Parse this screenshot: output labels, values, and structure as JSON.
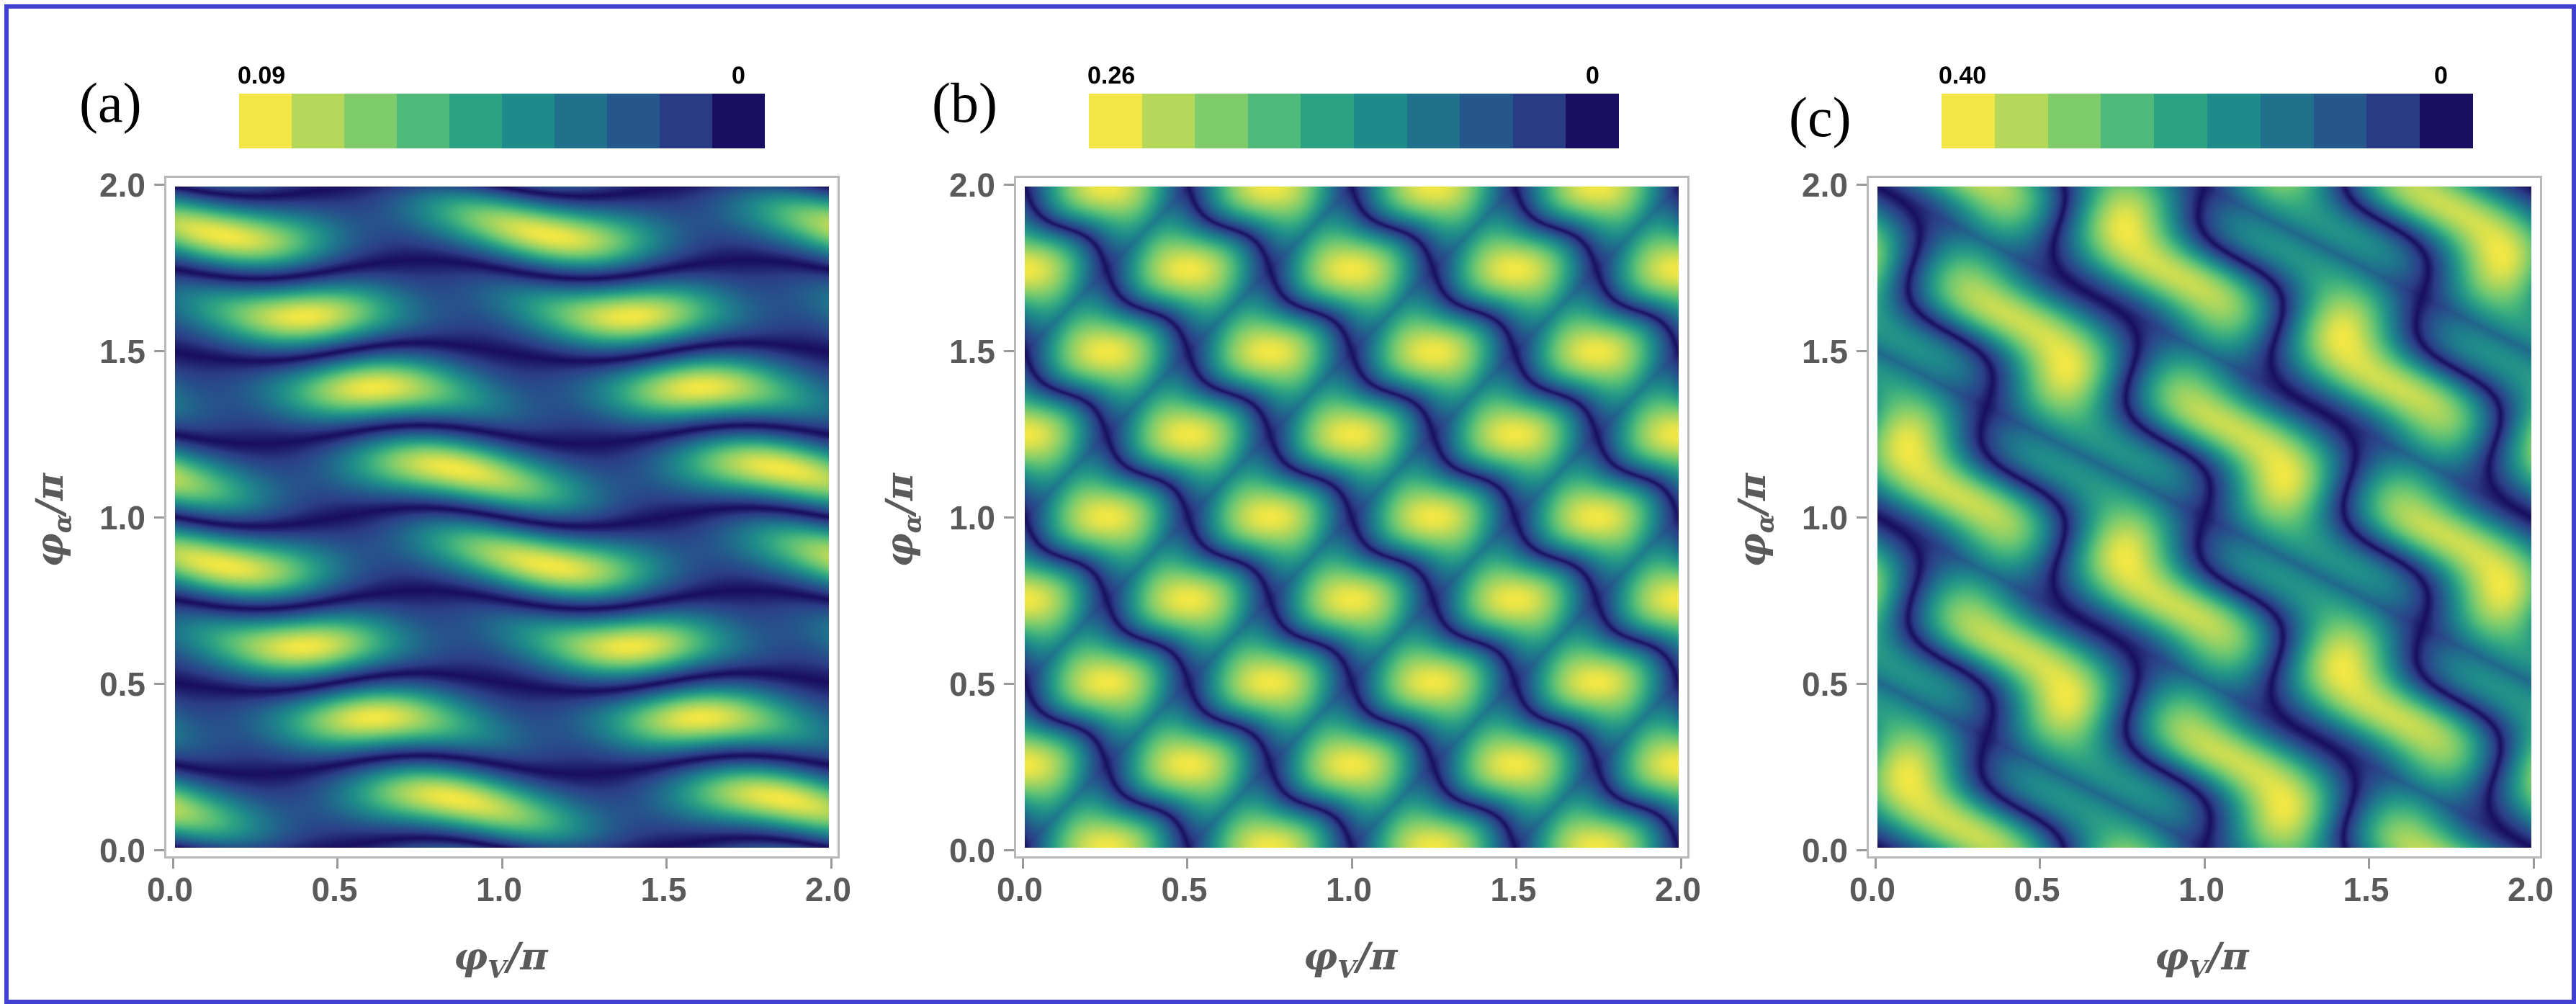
{
  "figure": {
    "border_color": "#3f3fd1",
    "colormap": [
      "#f2e744",
      "#b5d85a",
      "#7fcc6c",
      "#4fba79",
      "#2da283",
      "#1f8a8a",
      "#1f718c",
      "#25578b",
      "#2b3c87",
      "#190f60"
    ],
    "colorbar_title_note": ""
  },
  "chart_data": [
    {
      "type": "heatmap",
      "panel_label": "(a)",
      "colorbar": {
        "max_label": "0.09",
        "min_label": "0",
        "max": 0.09,
        "min": 0
      },
      "xlabel": "φ",
      "xlabel_sub": "V",
      "xlabel_suffix": "/π",
      "ylabel": "φ",
      "ylabel_sub": "α",
      "ylabel_suffix": "/π",
      "xlim": [
        0,
        2
      ],
      "ylim": [
        0,
        2
      ],
      "xticks": [
        "0.0",
        "0.5",
        "1.0",
        "1.5",
        "2.0"
      ],
      "yticks": [
        "0.0",
        "0.5",
        "1.0",
        "1.5",
        "2.0"
      ],
      "pattern": {
        "kx": 2,
        "ky": 8,
        "wave_amp": 0.35,
        "wave_freq": 2,
        "skew": 0
      }
    },
    {
      "type": "heatmap",
      "panel_label": "(b)",
      "colorbar": {
        "max_label": "0.26",
        "min_label": "0",
        "max": 0.26,
        "min": 0
      },
      "xlabel": "φ",
      "xlabel_sub": "V",
      "xlabel_suffix": "/π",
      "ylabel": "φ",
      "ylabel_sub": "α",
      "ylabel_suffix": "/π",
      "xlim": [
        0,
        2
      ],
      "ylim": [
        0,
        2
      ],
      "xticks": [
        "0.0",
        "0.5",
        "1.0",
        "1.5",
        "2.0"
      ],
      "yticks": [
        "0.0",
        "0.5",
        "1.0",
        "1.5",
        "2.0"
      ],
      "pattern": {
        "kx": 4,
        "ky": 4,
        "wave_amp": 0.25,
        "wave_freq": 2,
        "skew": 1
      }
    },
    {
      "type": "heatmap",
      "panel_label": "(c)",
      "colorbar": {
        "max_label": "0.40",
        "min_label": "0",
        "max": 0.4,
        "min": 0
      },
      "xlabel": "φ",
      "xlabel_sub": "V",
      "xlabel_suffix": "/π",
      "ylabel": "φ",
      "ylabel_sub": "α",
      "ylabel_suffix": "/π",
      "xlim": [
        0,
        2
      ],
      "ylim": [
        0,
        2
      ],
      "xticks": [
        "0.0",
        "0.5",
        "1.0",
        "1.5",
        "2.0"
      ],
      "yticks": [
        "0.0",
        "0.5",
        "1.0",
        "1.5",
        "2.0"
      ],
      "pattern": {
        "kx": 4,
        "ky": 4,
        "wave_amp": 0.45,
        "wave_freq": 4,
        "skew": 0.5
      }
    }
  ]
}
